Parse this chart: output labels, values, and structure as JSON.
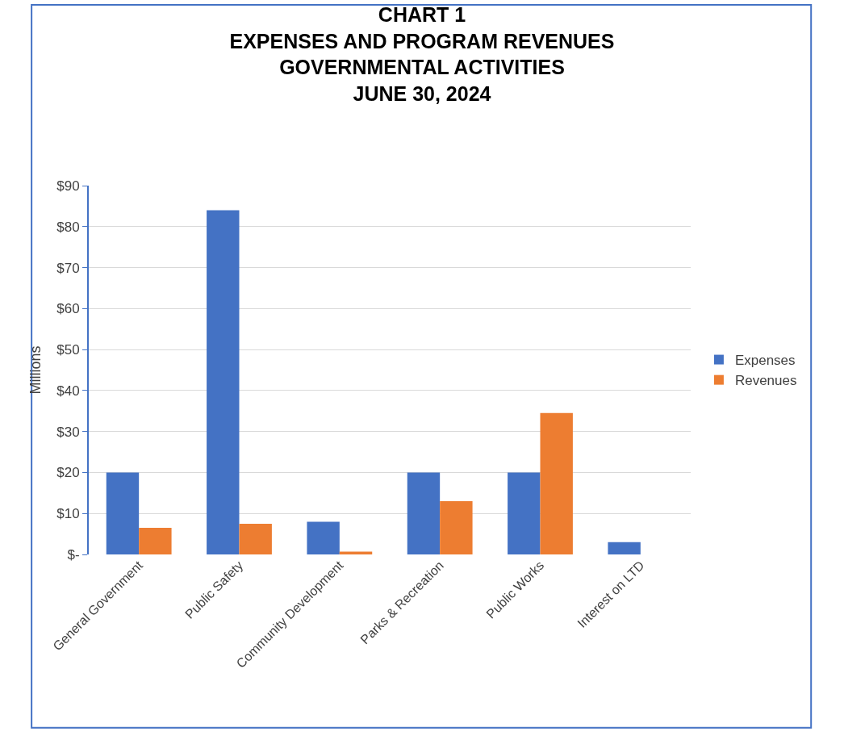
{
  "chart_data": {
    "type": "bar",
    "title": "CHART 1\nEXPENSES AND PROGRAM REVENUES\nGOVERNMENTAL ACTIVITIES\nJUNE 30, 2024",
    "ylabel": "Millions",
    "categories": [
      "General Government",
      "Public Safety",
      "Community Development",
      "Parks & Recreation",
      "Public Works",
      "Interest on LTD"
    ],
    "series": [
      {
        "name": "Expenses",
        "color": "#4472c4",
        "values": [
          20,
          84,
          8,
          20,
          20,
          3
        ]
      },
      {
        "name": "Revenues",
        "color": "#ed7d31",
        "values": [
          6.5,
          7.5,
          0.7,
          13,
          34.5,
          0
        ]
      }
    ],
    "ylim": [
      0,
      90
    ],
    "yticks": [
      {
        "value": 0,
        "label": "$-"
      },
      {
        "value": 10,
        "label": "$10"
      },
      {
        "value": 20,
        "label": "$20"
      },
      {
        "value": 30,
        "label": "$30"
      },
      {
        "value": 40,
        "label": "$40"
      },
      {
        "value": 50,
        "label": "$50"
      },
      {
        "value": 60,
        "label": "$60"
      },
      {
        "value": 70,
        "label": "$70"
      },
      {
        "value": 80,
        "label": "$80"
      },
      {
        "value": 90,
        "label": "$90"
      }
    ],
    "grid": "y",
    "legend": "right"
  }
}
